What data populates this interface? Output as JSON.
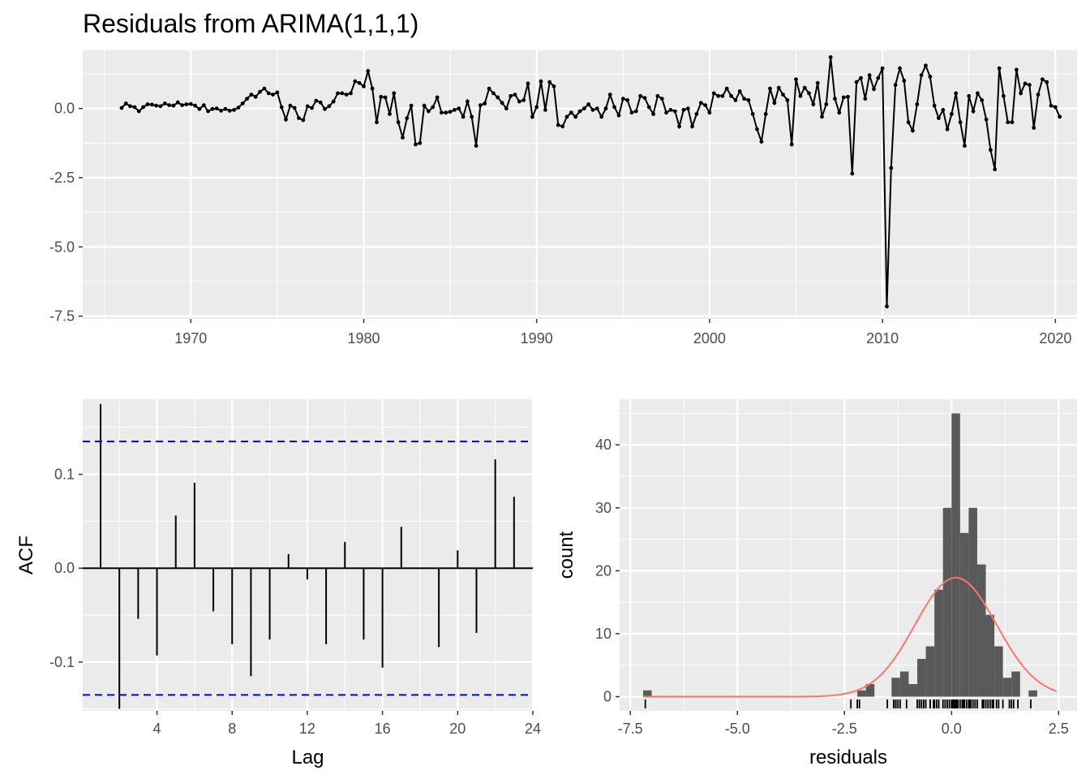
{
  "title": "Residuals from ARIMA(1,1,1)",
  "colors": {
    "panel_bg": "#ebebeb",
    "grid": "#ffffff",
    "line": "#000000",
    "ci": "#0000ff",
    "bar": "#595959",
    "density": "#f8766d",
    "tick_text": "#4d4d4d"
  },
  "chart_data": [
    {
      "type": "line",
      "title": "Residuals from ARIMA(1,1,1)",
      "xlabel": "",
      "ylabel": "",
      "x_start": 1966.0,
      "x_step": 0.25,
      "xlim": [
        1963.75,
        2021.25
      ],
      "ylim": [
        -7.6,
        2.1
      ],
      "x_ticks": [
        1970,
        1980,
        1990,
        2000,
        2010,
        2020
      ],
      "x_tick_labels": [
        "1970",
        "1980",
        "1990",
        "2000",
        "2010",
        "2020"
      ],
      "y_ticks": [
        -7.5,
        -5.0,
        -2.5,
        0.0
      ],
      "y_tick_labels": [
        "-7.5",
        "-5.0",
        "-2.5",
        "0.0"
      ],
      "values": [
        0.02,
        0.18,
        0.08,
        0.05,
        -0.1,
        0.05,
        0.15,
        0.14,
        0.1,
        0.08,
        0.18,
        0.12,
        0.1,
        0.22,
        0.12,
        0.15,
        0.16,
        0.1,
        -0.02,
        0.12,
        -0.1,
        -0.02,
        0.0,
        -0.08,
        -0.02,
        -0.08,
        -0.05,
        0.03,
        0.18,
        0.35,
        0.5,
        0.42,
        0.6,
        0.72,
        0.55,
        0.5,
        0.58,
        0.05,
        -0.4,
        0.1,
        0.02,
        -0.35,
        -0.42,
        0.08,
        0.02,
        0.28,
        0.22,
        -0.02,
        0.08,
        0.25,
        0.55,
        0.55,
        0.5,
        0.55,
        0.98,
        0.92,
        0.8,
        1.35,
        0.72,
        -0.5,
        0.42,
        0.4,
        -0.2,
        0.55,
        -0.5,
        -1.05,
        -0.35,
        0.1,
        -1.3,
        -1.25,
        0.1,
        -0.1,
        0.05,
        0.4,
        -0.15,
        -0.15,
        -0.12,
        -0.05,
        0.0,
        -0.3,
        0.25,
        -0.3,
        -1.35,
        0.12,
        0.18,
        0.72,
        0.55,
        0.4,
        0.2,
        0.0,
        0.45,
        0.5,
        0.25,
        0.3,
        0.9,
        -0.3,
        0.05,
        0.98,
        -0.05,
        0.95,
        0.8,
        -0.6,
        -0.65,
        -0.3,
        -0.15,
        -0.3,
        -0.1,
        0.0,
        0.15,
        -0.05,
        0.0,
        -0.3,
        0.0,
        0.5,
        0.05,
        -0.25,
        0.35,
        0.3,
        -0.15,
        -0.1,
        0.45,
        0.38,
        0.05,
        -0.2,
        0.45,
        0.35,
        -0.15,
        -0.05,
        -0.1,
        -0.65,
        -0.05,
        0.0,
        -0.65,
        -0.2,
        0.2,
        0.12,
        -0.15,
        0.55,
        0.45,
        0.45,
        0.72,
        0.45,
        0.3,
        0.62,
        0.35,
        0.3,
        -0.2,
        -0.75,
        -1.2,
        -0.2,
        0.72,
        0.2,
        0.75,
        0.5,
        0.3,
        -1.3,
        1.05,
        0.45,
        0.75,
        0.55,
        0.15,
        0.92,
        -0.3,
        0.15,
        1.85,
        0.35,
        -0.15,
        0.4,
        0.42,
        -2.35,
        0.95,
        1.1,
        0.35,
        1.2,
        0.7,
        1.1,
        1.45,
        -7.15,
        -2.15,
        0.85,
        1.45,
        1.0,
        -0.5,
        -0.8,
        0.15,
        1.2,
        1.55,
        1.15,
        0.1,
        -0.35,
        -0.05,
        -0.75,
        -0.2,
        0.55,
        -0.5,
        -1.35,
        0.45,
        -0.1,
        0.55,
        0.3,
        -0.4,
        -1.5,
        -2.2,
        1.45,
        0.45,
        -0.5,
        -0.5,
        1.4,
        0.55,
        0.9,
        0.85,
        -0.7,
        0.5,
        1.05,
        0.95,
        0.1,
        0.05,
        -0.3
      ]
    },
    {
      "type": "bar",
      "title": "",
      "xlabel": "Lag",
      "ylabel": "ACF",
      "xlim": [
        0.05,
        24.0
      ],
      "ylim": [
        -0.152,
        0.18
      ],
      "categories": [
        1,
        2,
        3,
        4,
        5,
        6,
        7,
        8,
        9,
        10,
        11,
        12,
        13,
        14,
        15,
        16,
        17,
        18,
        19,
        20,
        21,
        22,
        23
      ],
      "values": [
        0.175,
        -0.15,
        -0.054,
        -0.093,
        0.056,
        0.091,
        -0.046,
        -0.081,
        -0.115,
        -0.076,
        0.015,
        -0.012,
        -0.081,
        0.028,
        -0.076,
        -0.106,
        0.044,
        0.0,
        -0.084,
        0.019,
        -0.069,
        0.116,
        0.076
      ],
      "ci_bounds": [
        0.135,
        -0.135
      ],
      "x_ticks": [
        4,
        8,
        12,
        16,
        20,
        24
      ],
      "x_tick_labels": [
        "4",
        "8",
        "12",
        "16",
        "20",
        "24"
      ],
      "y_ticks": [
        0.1,
        0.0,
        -0.1
      ],
      "y_tick_labels": [
        "0.1",
        "0.0",
        "-0.1"
      ]
    },
    {
      "type": "bar",
      "title": "",
      "xlabel": "residuals",
      "ylabel": "count",
      "xlim": [
        -7.75,
        2.93
      ],
      "ylim": [
        -2.25,
        47.25
      ],
      "bin_start": -7.2,
      "bin_width": 0.2,
      "counts": [
        1,
        0,
        0,
        0,
        0,
        0,
        0,
        0,
        0,
        0,
        0,
        0,
        0,
        0,
        0,
        0,
        0,
        0,
        0,
        0,
        0,
        0,
        0,
        0,
        0,
        1,
        2,
        0,
        0,
        3,
        4,
        2,
        6,
        8,
        17,
        30,
        45,
        26,
        30,
        21,
        13,
        8,
        3,
        4,
        0,
        1
      ],
      "density_mean": 0.1,
      "density_sd": 0.95,
      "density_range": [
        -7.2,
        2.45
      ],
      "rug": [
        -7.15,
        -2.35,
        -2.2,
        -2.15,
        -1.5,
        -1.35,
        -1.35,
        -1.3,
        -1.3,
        -1.25,
        -1.2,
        -1.05,
        -0.8,
        -0.75,
        -0.75,
        -0.7,
        -0.65,
        -0.65,
        -0.6,
        -0.5,
        -0.5,
        -0.5,
        -0.42,
        -0.4,
        -0.35,
        -0.3,
        -0.3,
        -0.2,
        -0.15,
        -0.1,
        -0.05,
        0.0,
        0.02,
        0.05,
        0.08,
        0.1,
        0.12,
        0.15,
        0.2,
        0.25,
        0.28,
        0.3,
        0.35,
        0.4,
        0.42,
        0.45,
        0.5,
        0.55,
        0.6,
        0.72,
        0.75,
        0.8,
        0.85,
        0.9,
        0.95,
        0.98,
        1.05,
        1.1,
        1.2,
        1.35,
        1.4,
        1.45,
        1.55,
        1.85
      ],
      "x_ticks": [
        -7.5,
        -5.0,
        -2.5,
        0.0,
        2.5
      ],
      "x_tick_labels": [
        "-7.5",
        "-5.0",
        "-2.5",
        "0.0",
        "2.5"
      ],
      "y_ticks": [
        0,
        10,
        20,
        30,
        40
      ],
      "y_tick_labels": [
        "0",
        "10",
        "20",
        "30",
        "40"
      ]
    }
  ]
}
